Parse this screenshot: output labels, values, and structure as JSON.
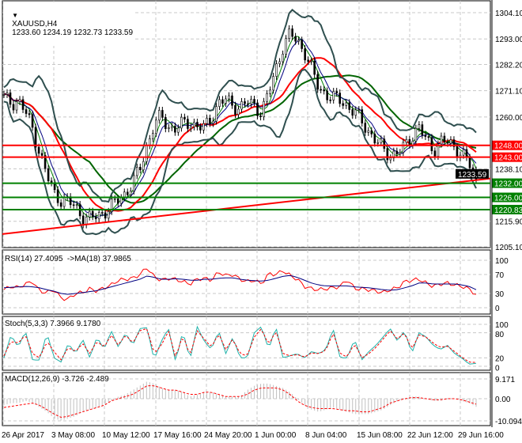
{
  "header": {
    "symbol": "XAUUSD,H4",
    "ohlc": "1233.60 1234.19 1232.73 1233.59"
  },
  "chart_data": [
    {
      "type": "candlestick",
      "title": "XAUUSD,H4 1233.60 1234.19 1232.73 1233.59",
      "ylim": [
        1205.1,
        1304.1
      ],
      "y_ticks": [
        "1304.10",
        "1293.00",
        "1282.20",
        "1271.10",
        "1260.00",
        "1238.10",
        "1215.90",
        "1205.10"
      ],
      "x_ticks": [
        "26 Apr 2017",
        "3 May 08:00",
        "10 May 12:00",
        "17 May 16:00",
        "24 May 20:00",
        "1 Jun 00:00",
        "8 Jun 04:00",
        "15 Jun 08:00",
        "22 Jun 12:00",
        "29 Jun 16:00"
      ],
      "close_sampled": [
        1268,
        1266,
        1267,
        1262,
        1255,
        1245,
        1235,
        1228,
        1225,
        1224,
        1222,
        1218,
        1217,
        1218,
        1220,
        1222,
        1225,
        1228,
        1232,
        1238,
        1248,
        1257,
        1260,
        1256,
        1255,
        1257,
        1258,
        1256,
        1255,
        1260,
        1266,
        1267,
        1265,
        1264,
        1266,
        1265,
        1262,
        1270,
        1280,
        1290,
        1295,
        1292,
        1288,
        1280,
        1272,
        1270,
        1268,
        1267,
        1265,
        1262,
        1258,
        1254,
        1250,
        1246,
        1244,
        1245,
        1247,
        1252,
        1256,
        1250,
        1246,
        1250,
        1249,
        1247,
        1245,
        1240,
        1233.6
      ],
      "horizontal_levels": [
        {
          "label": "1248.00",
          "value": 1248.0,
          "color": "#ff0000"
        },
        {
          "label": "1243.00",
          "value": 1243.0,
          "color": "#ff0000"
        },
        {
          "label": "1232.00",
          "value": 1232.0,
          "color": "#008000"
        },
        {
          "label": "1226.00",
          "value": 1226.0,
          "color": "#008000"
        },
        {
          "label": "1220.83",
          "value": 1220.83,
          "color": "#008000"
        }
      ],
      "trendline": {
        "from": 1210.5,
        "to": 1234.0,
        "color": "#ff0000"
      },
      "current_price": "1233.59",
      "colors": {
        "price": "#000000",
        "bands": "#2f4f4f",
        "ma_fast": "#008000",
        "ma_slow": "#ff0000",
        "ma_long": "#006400"
      }
    },
    {
      "type": "line",
      "title": "RSI(14) 27.4095  ->MA(18) 37.9865",
      "ylim": [
        0,
        100
      ],
      "y_ticks": [
        "100",
        "70",
        "30",
        "0"
      ],
      "series": [
        {
          "name": "RSI(14)",
          "color": "#ff0000",
          "values": [
            38,
            45,
            42,
            50,
            55,
            35,
            32,
            38,
            20,
            18,
            30,
            32,
            40,
            35,
            42,
            48,
            58,
            60,
            62,
            70,
            85,
            65,
            58,
            62,
            60,
            55,
            50,
            60,
            62,
            58,
            75,
            68,
            70,
            60,
            55,
            58,
            50,
            72,
            70,
            78,
            68,
            60,
            45,
            40,
            38,
            40,
            42,
            45,
            60,
            40,
            40,
            38,
            35,
            32,
            38,
            42,
            55,
            58,
            60,
            52,
            45,
            50,
            52,
            48,
            45,
            40,
            27
          ]
        },
        {
          "name": "MA(18)",
          "color": "#000080",
          "values": [
            42,
            43,
            44,
            45,
            44,
            42,
            38,
            35,
            30,
            28,
            30,
            32,
            34,
            36,
            40,
            44,
            48,
            52,
            56,
            60,
            67,
            64,
            60,
            60,
            61,
            60,
            58,
            58,
            60,
            60,
            62,
            63,
            63,
            60,
            58,
            57,
            56,
            58,
            62,
            66,
            68,
            64,
            58,
            52,
            48,
            46,
            46,
            46,
            46,
            44,
            43,
            42,
            40,
            38,
            37,
            38,
            42,
            46,
            52,
            52,
            50,
            50,
            50,
            50,
            48,
            45,
            38
          ]
        }
      ]
    },
    {
      "type": "line",
      "title": "Stoch(5,3,3) 7.3966 9.1780",
      "ylim": [
        0,
        100
      ],
      "y_ticks": [
        "100",
        "80",
        "20",
        "0"
      ],
      "series": [
        {
          "name": "Main",
          "color": "#20b2aa",
          "values": [
            20,
            75,
            45,
            85,
            15,
            15,
            80,
            20,
            10,
            55,
            30,
            65,
            20,
            70,
            40,
            85,
            45,
            80,
            50,
            90,
            92,
            15,
            60,
            90,
            10,
            85,
            15,
            95,
            60,
            40,
            85,
            30,
            70,
            20,
            20,
            80,
            95,
            40,
            95,
            20,
            25,
            30,
            20,
            35,
            30,
            40,
            90,
            20,
            20,
            65,
            15,
            35,
            50,
            70,
            90,
            60,
            85,
            30,
            80,
            70,
            50,
            40,
            50,
            30,
            20,
            5,
            7
          ]
        },
        {
          "name": "Signal",
          "color": "#ff0000",
          "values": [
            25,
            60,
            55,
            75,
            30,
            20,
            60,
            35,
            15,
            45,
            35,
            55,
            30,
            60,
            45,
            75,
            50,
            75,
            55,
            85,
            90,
            30,
            50,
            85,
            20,
            75,
            25,
            85,
            65,
            45,
            78,
            40,
            65,
            30,
            25,
            70,
            90,
            50,
            85,
            30,
            25,
            28,
            22,
            32,
            30,
            38,
            80,
            30,
            22,
            55,
            20,
            30,
            45,
            65,
            85,
            65,
            80,
            40,
            75,
            70,
            55,
            45,
            48,
            35,
            22,
            10,
            9
          ]
        }
      ]
    },
    {
      "type": "bar",
      "title": "MACD(12,26,9) -3.726 -2.489",
      "ylim": [
        -10.094,
        9.171
      ],
      "y_ticks": [
        "9.171",
        "0.00",
        "-10.094"
      ],
      "series": [
        {
          "name": "MACD",
          "color": "#c0c0c0",
          "values": [
            -3,
            -2,
            -2,
            -1,
            -2,
            -4,
            -6,
            -9,
            -10,
            -9,
            -8,
            -6,
            -5,
            -4,
            -3,
            -1,
            1,
            2,
            4,
            6,
            8,
            7,
            5,
            4,
            4,
            3,
            1,
            2,
            3,
            3,
            2,
            1,
            1,
            1,
            4,
            6,
            7,
            7,
            6,
            5,
            3,
            0,
            -3,
            -5,
            -6,
            -5,
            -4,
            -5,
            -6,
            -7,
            -7,
            -7,
            -6,
            -5,
            -3,
            -1,
            0,
            1,
            1,
            0,
            -1,
            -1,
            0,
            0,
            -1,
            -2,
            -3.7
          ]
        },
        {
          "name": "Signal",
          "color": "#ff0000",
          "values": [
            -4,
            -3.5,
            -3,
            -2.5,
            -2,
            -3,
            -5,
            -7,
            -8.5,
            -8,
            -7,
            -6,
            -5,
            -4,
            -3,
            -1,
            0,
            1,
            2,
            4,
            6,
            6,
            5,
            4,
            4,
            3,
            2,
            2,
            3,
            3,
            2,
            1,
            1,
            1,
            2,
            4,
            5,
            5,
            5,
            4,
            2,
            -1,
            -3,
            -4,
            -4.5,
            -4.5,
            -4.5,
            -5,
            -5.5,
            -5.5,
            -6,
            -6,
            -5,
            -4,
            -2,
            -1,
            0,
            0.5,
            0.5,
            0,
            -0.5,
            -0.5,
            0,
            0,
            -0.5,
            -1.5,
            -2.5
          ]
        }
      ]
    }
  ]
}
